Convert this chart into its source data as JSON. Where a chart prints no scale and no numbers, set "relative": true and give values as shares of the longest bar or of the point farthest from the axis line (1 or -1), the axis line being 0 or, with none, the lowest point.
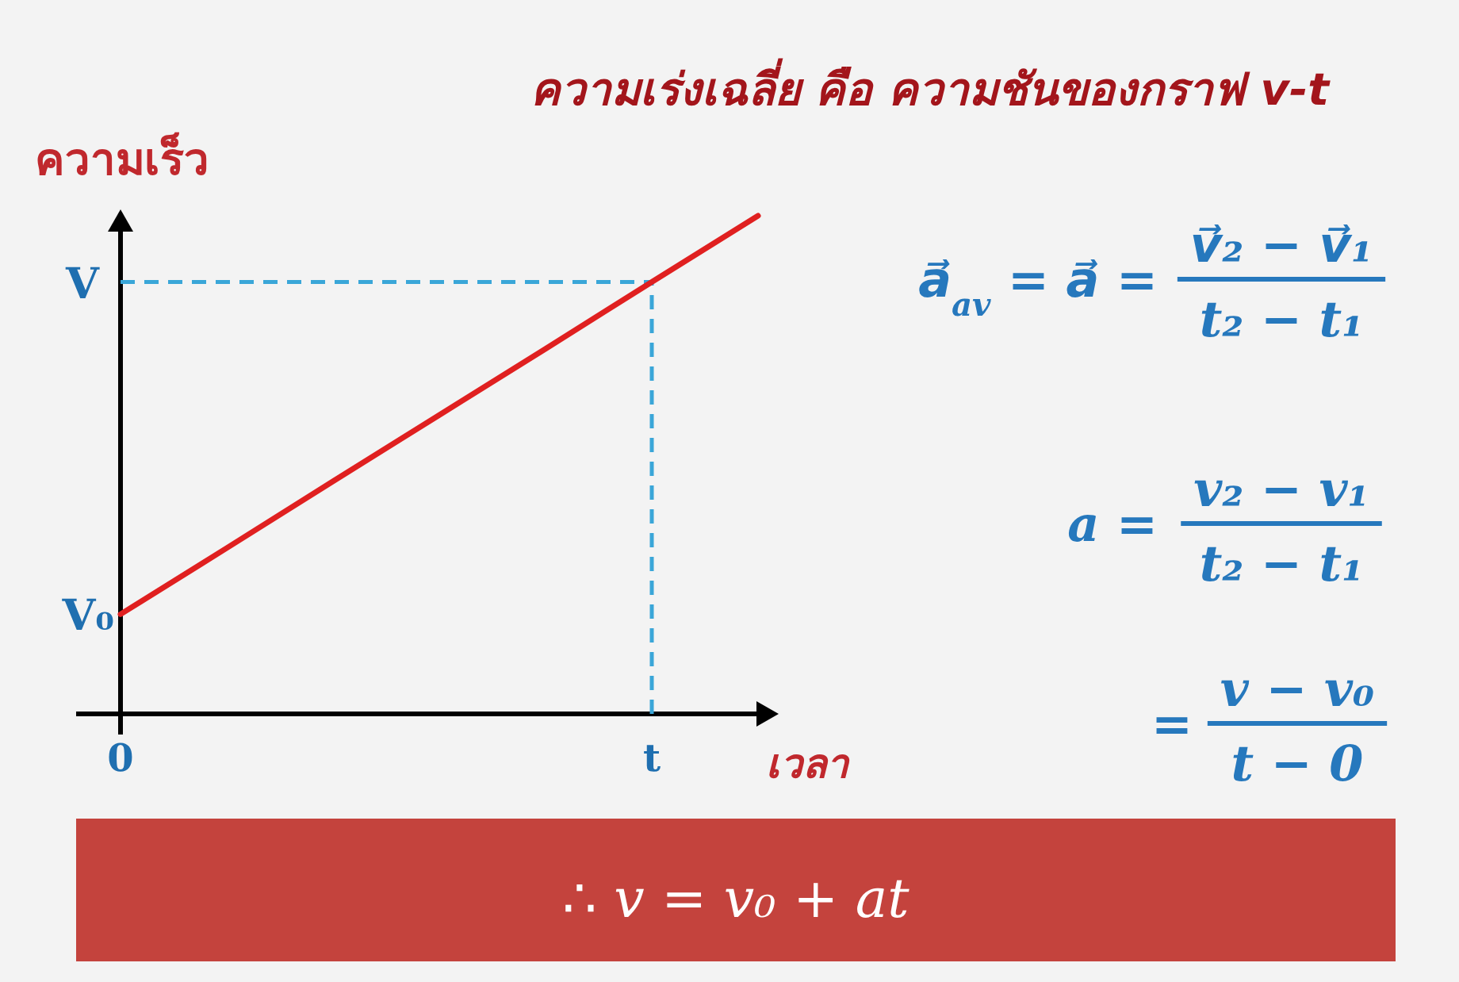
{
  "chart_data": {
    "type": "line",
    "relative": true,
    "title": "ความเร่งเฉลี่ย คือ ความชันของกราฟ v-t",
    "ylabel": "ความเร็ว",
    "xlabel": "เวลา",
    "categories": [
      "0",
      null,
      null,
      null,
      null,
      "t",
      null
    ],
    "series": [
      {
        "color": "#e02020",
        "values": [
          0.2,
          0.333,
          0.467,
          0.6,
          0.733,
          0.867,
          1
        ]
      }
    ],
    "ref_lines": [
      {
        "axis": "y",
        "value": 0.867,
        "label": "V",
        "color": "#3aa6d8",
        "line_style": "dashed"
      },
      {
        "axis": "x",
        "value": "t",
        "color": "#3aa6d8",
        "line_style": "dashed"
      }
    ],
    "annotations": [
      {
        "text": "V₀",
        "x": "0",
        "y": 0.2
      },
      "a⃗$_{av}$ = a⃗ =",
      "v⃗₂ − v⃗₁",
      "t₂ − t₁",
      "a =",
      "v₂ − v₁",
      "t₂ − t₁",
      "=",
      "v − v₀",
      "t − 0",
      "∴ v = v₀ + at"
    ]
  }
}
